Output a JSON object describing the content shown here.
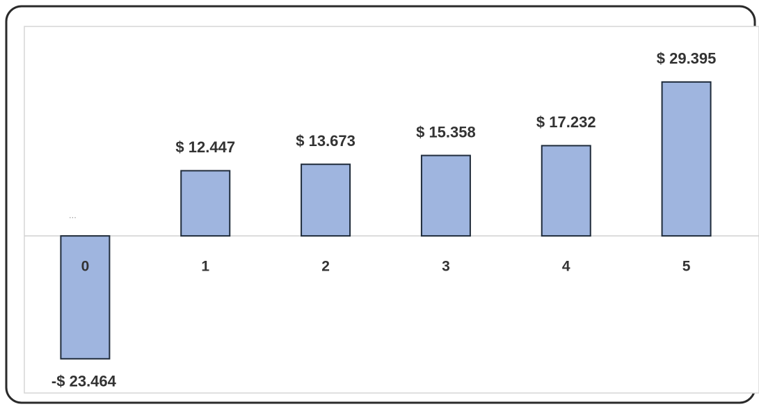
{
  "chart_data": {
    "type": "bar",
    "categories": [
      "0",
      "1",
      "2",
      "3",
      "4",
      "5"
    ],
    "values": [
      -23.464,
      12.447,
      13.673,
      15.358,
      17.232,
      29.395
    ],
    "value_labels": [
      "-$ 23.464",
      "$ 12.447",
      "$ 13.673",
      "$ 15.358",
      "$ 17.232",
      "$ 29.395"
    ],
    "annotations": [
      "..."
    ],
    "color": "#9fb5df",
    "ylim": [
      -30,
      40
    ]
  }
}
